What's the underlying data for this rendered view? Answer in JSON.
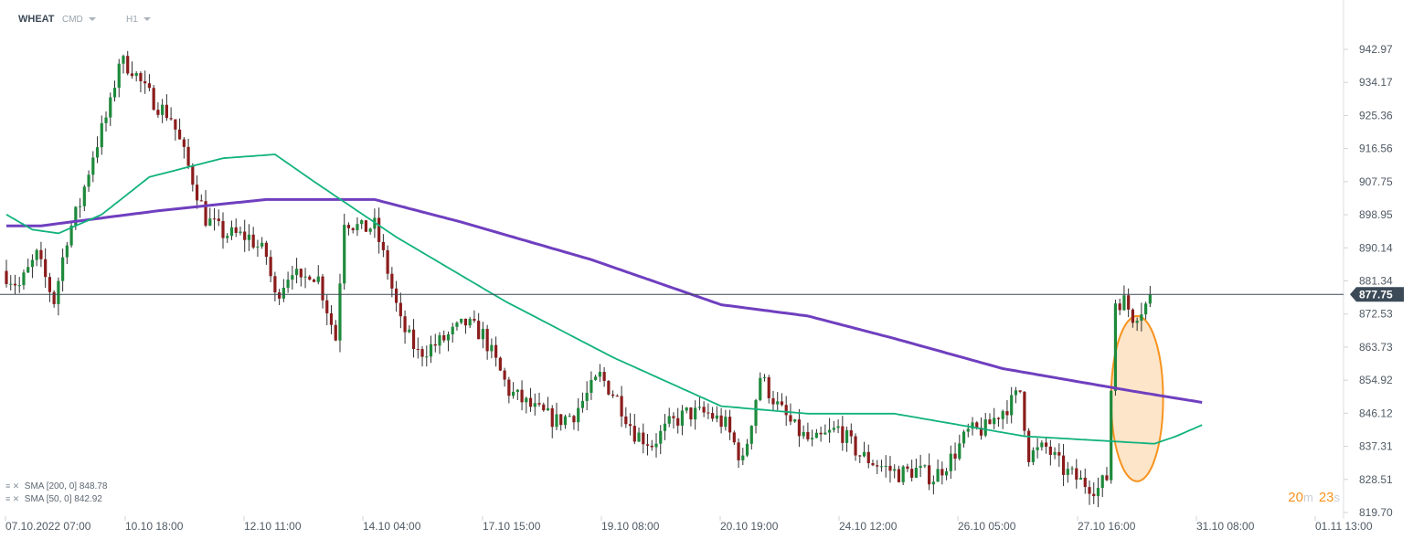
{
  "header": {
    "symbol": "WHEAT",
    "type": "CMD",
    "timeframe": "H1"
  },
  "indicators": [
    {
      "icons": "≡ ✕",
      "label": "SMA",
      "params": "[200,  0]",
      "value": "848.78",
      "color": "#6f3fbf"
    },
    {
      "icons": "≡ ✕",
      "label": "SMA",
      "params": "[50,  0]",
      "value": "842.92",
      "color": "#11b27e"
    }
  ],
  "timer": {
    "m": "20",
    "m_unit": "m",
    "s": "23",
    "s_unit": "s"
  },
  "colors": {
    "up": "#1e8a3c",
    "down": "#8b1c1c",
    "wick": "#2f2f2f",
    "sma200": "#6f3fbf",
    "sma50": "#11b27e",
    "price_line": "#3c4a58",
    "ellipse_fill": "#fde0bf",
    "ellipse_stroke": "#f7931e"
  },
  "chart_data": {
    "type": "candlestick",
    "instrument": "WHEAT",
    "timeframe": "H1",
    "last_price": 877.75,
    "last_price_label": "877.75",
    "ylim": [
      819.7,
      942.97
    ],
    "y_ticks": [
      "942.97",
      "934.17",
      "925.36",
      "916.56",
      "907.75",
      "898.95",
      "890.14",
      "881.34",
      "872.53",
      "863.73",
      "854.92",
      "846.12",
      "837.31",
      "828.51",
      "819.70"
    ],
    "x_ticks": [
      "07.10.2022  07:00",
      "10.10  18:00",
      "12.10  11:00",
      "14.10  04:00",
      "17.10  15:00",
      "19.10  08:00",
      "20.10  19:00",
      "24.10  12:00",
      "26.10  05:00",
      "27.10  16:00",
      "31.10  08:00",
      "01.11  13:00"
    ],
    "series": [
      {
        "name": "SMA [200, 0]",
        "last": 848.78,
        "anchors": [
          [
            0,
            896
          ],
          [
            8,
            896
          ],
          [
            35,
            900
          ],
          [
            60,
            903
          ],
          [
            85,
            903
          ],
          [
            105,
            897
          ],
          [
            135,
            887
          ],
          [
            165,
            875
          ],
          [
            185,
            872
          ],
          [
            205,
            866
          ],
          [
            230,
            858
          ],
          [
            260,
            852
          ],
          [
            276,
            849
          ]
        ]
      },
      {
        "name": "SMA [50, 0]",
        "anchors": [
          [
            0,
            899
          ],
          [
            6,
            895
          ],
          [
            12,
            894
          ],
          [
            22,
            899
          ],
          [
            33,
            909
          ],
          [
            50,
            914
          ],
          [
            62,
            915
          ],
          [
            72,
            907
          ],
          [
            90,
            893
          ],
          [
            115,
            876
          ],
          [
            140,
            861
          ],
          [
            165,
            848
          ],
          [
            185,
            846
          ],
          [
            205,
            846
          ],
          [
            215,
            844
          ],
          [
            235,
            840
          ],
          [
            250,
            839
          ],
          [
            265,
            838
          ],
          [
            270,
            840
          ],
          [
            276,
            843
          ]
        ]
      },
      {
        "name": "close",
        "anchors": [
          [
            0,
            883
          ],
          [
            3,
            880
          ],
          [
            7,
            888
          ],
          [
            11,
            876
          ],
          [
            14,
            893
          ],
          [
            17,
            902
          ],
          [
            20,
            915
          ],
          [
            24,
            928
          ],
          [
            26,
            940
          ],
          [
            29,
            938
          ],
          [
            32,
            932
          ],
          [
            35,
            928
          ],
          [
            38,
            925
          ],
          [
            41,
            915
          ],
          [
            44,
            905
          ],
          [
            46,
            898
          ],
          [
            50,
            894
          ],
          [
            56,
            893
          ],
          [
            60,
            888
          ],
          [
            62,
            877
          ],
          [
            66,
            885
          ],
          [
            68,
            880
          ],
          [
            70,
            884
          ],
          [
            72,
            882
          ],
          [
            74,
            874
          ],
          [
            76,
            866
          ],
          [
            78,
            898
          ],
          [
            82,
            895
          ],
          [
            85,
            896
          ],
          [
            88,
            884
          ],
          [
            91,
            870
          ],
          [
            95,
            862
          ],
          [
            100,
            865
          ],
          [
            106,
            870
          ],
          [
            110,
            867
          ],
          [
            116,
            852
          ],
          [
            122,
            847
          ],
          [
            127,
            844
          ],
          [
            131,
            846
          ],
          [
            137,
            856
          ],
          [
            141,
            850
          ],
          [
            145,
            841
          ],
          [
            149,
            838
          ],
          [
            153,
            843
          ],
          [
            157,
            846
          ],
          [
            162,
            846
          ],
          [
            166,
            843
          ],
          [
            170,
            833
          ],
          [
            174,
            856
          ],
          [
            178,
            848
          ],
          [
            182,
            842
          ],
          [
            186,
            838
          ],
          [
            192,
            842
          ],
          [
            197,
            835
          ],
          [
            202,
            832
          ],
          [
            206,
            830
          ],
          [
            210,
            831
          ],
          [
            214,
            829
          ],
          [
            218,
            834
          ],
          [
            222,
            841
          ],
          [
            226,
            842
          ],
          [
            229,
            846
          ],
          [
            232,
            849
          ],
          [
            234,
            852
          ],
          [
            236,
            835
          ],
          [
            240,
            837
          ],
          [
            244,
            831
          ],
          [
            248,
            828
          ],
          [
            252,
            826
          ],
          [
            254,
            829
          ],
          [
            256,
            876
          ],
          [
            258,
            876
          ],
          [
            260,
            872
          ],
          [
            263,
            875
          ],
          [
            264,
            877.75
          ]
        ]
      }
    ],
    "annotation": {
      "type": "ellipse",
      "center": [
        261,
        850
      ],
      "spans": [
        6,
        22
      ]
    }
  }
}
